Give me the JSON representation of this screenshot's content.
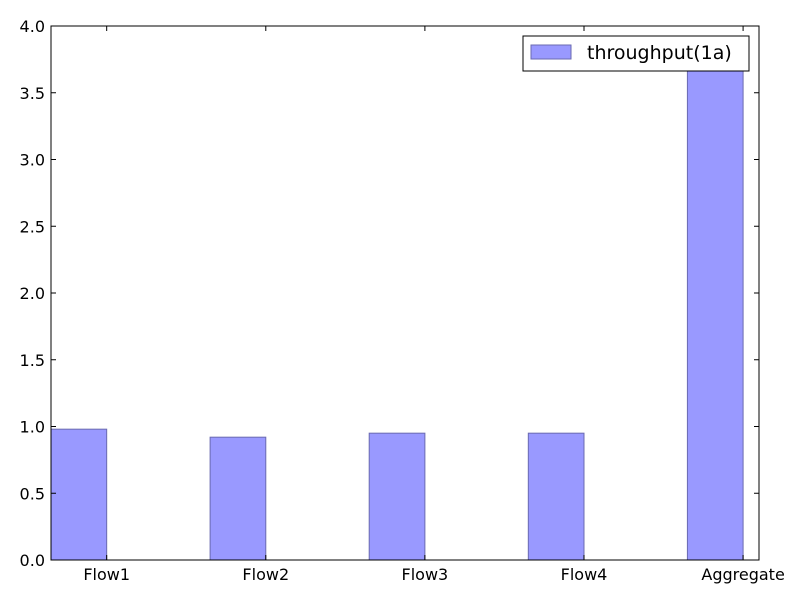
{
  "chart_data": {
    "type": "bar",
    "categories": [
      "Flow1",
      "Flow2",
      "Flow3",
      "Flow4",
      "Aggregate"
    ],
    "series": [
      {
        "name": "throughput(1a)",
        "values": [
          0.98,
          0.92,
          0.95,
          0.95,
          3.73
        ]
      }
    ],
    "title": "",
    "xlabel": "",
    "ylabel": "",
    "ylim": [
      0.0,
      4.0
    ],
    "yticks": [
      "0.0",
      "0.5",
      "1.0",
      "1.5",
      "2.0",
      "2.5",
      "3.0",
      "3.5",
      "4.0"
    ],
    "grid": false,
    "legend_position": "top-right",
    "bar_color": "#9999ff",
    "bar_edge_color": "#6a6ab0"
  }
}
